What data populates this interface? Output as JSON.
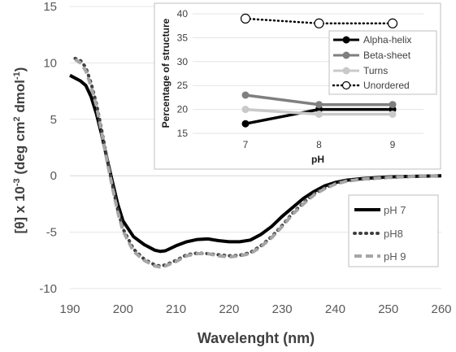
{
  "chart_data": [
    {
      "type": "line",
      "xlabel": "Wavelenght (nm)",
      "ylabel_parts": [
        "[θ] x 10",
        "-3",
        " (deg cm",
        "2",
        " dmol",
        "-1",
        ")"
      ],
      "xlim": [
        190,
        260
      ],
      "ylim": [
        -10,
        15
      ],
      "x_ticks": [
        "190",
        "200",
        "210",
        "220",
        "230",
        "240",
        "250",
        "260"
      ],
      "y_ticks": [
        "15",
        "10",
        "5",
        "0",
        "-5",
        "-10"
      ],
      "legend": {
        "placement": "lower-right",
        "entries": [
          "pH 7",
          "pH8",
          "pH 9"
        ]
      },
      "series": [
        {
          "name": "pH 7",
          "color": "#000000",
          "style": "solid",
          "points": [
            [
              190,
              8.9
            ],
            [
              192,
              8.4
            ],
            [
              193,
              8.0
            ],
            [
              194,
              7.0
            ],
            [
              195,
              5.5
            ],
            [
              196,
              3.6
            ],
            [
              197,
              1.5
            ],
            [
              198,
              -0.5
            ],
            [
              199,
              -2.5
            ],
            [
              200,
              -4.0
            ],
            [
              202,
              -5.4
            ],
            [
              204,
              -6.1
            ],
            [
              206,
              -6.6
            ],
            [
              207,
              -6.7
            ],
            [
              208,
              -6.65
            ],
            [
              210,
              -6.2
            ],
            [
              212,
              -5.85
            ],
            [
              214,
              -5.65
            ],
            [
              216,
              -5.6
            ],
            [
              218,
              -5.75
            ],
            [
              220,
              -5.85
            ],
            [
              222,
              -5.85
            ],
            [
              224,
              -5.7
            ],
            [
              226,
              -5.2
            ],
            [
              228,
              -4.5
            ],
            [
              230,
              -3.6
            ],
            [
              232,
              -2.8
            ],
            [
              234,
              -2.0
            ],
            [
              236,
              -1.4
            ],
            [
              238,
              -0.9
            ],
            [
              240,
              -0.6
            ],
            [
              242,
              -0.4
            ],
            [
              245,
              -0.25
            ],
            [
              250,
              -0.1
            ],
            [
              255,
              -0.05
            ],
            [
              260,
              0.0
            ]
          ]
        },
        {
          "name": "pH8",
          "color": "#404040",
          "style": "dotted",
          "points": [
            [
              191,
              10.4
            ],
            [
              192,
              10.2
            ],
            [
              193,
              9.6
            ],
            [
              194,
              8.2
            ],
            [
              195,
              6.4
            ],
            [
              196,
              4.0
            ],
            [
              197,
              1.5
            ],
            [
              198,
              -0.8
            ],
            [
              199,
              -3.0
            ],
            [
              200,
              -4.7
            ],
            [
              202,
              -6.5
            ],
            [
              204,
              -7.4
            ],
            [
              206,
              -7.9
            ],
            [
              207,
              -8.0
            ],
            [
              208,
              -7.9
            ],
            [
              210,
              -7.5
            ],
            [
              212,
              -7.0
            ],
            [
              214,
              -6.85
            ],
            [
              216,
              -6.9
            ],
            [
              218,
              -7.0
            ],
            [
              220,
              -7.1
            ],
            [
              222,
              -7.05
            ],
            [
              224,
              -6.8
            ],
            [
              226,
              -6.2
            ],
            [
              228,
              -5.4
            ],
            [
              230,
              -4.4
            ],
            [
              232,
              -3.3
            ],
            [
              234,
              -2.4
            ],
            [
              236,
              -1.6
            ],
            [
              238,
              -1.1
            ],
            [
              240,
              -0.7
            ],
            [
              242,
              -0.45
            ],
            [
              245,
              -0.3
            ],
            [
              250,
              -0.15
            ],
            [
              255,
              -0.05
            ],
            [
              260,
              0.0
            ]
          ]
        },
        {
          "name": "pH 9",
          "color": "#a6a6a6",
          "style": "dashed",
          "points": [
            [
              191,
              10.3
            ],
            [
              192,
              10.0
            ],
            [
              193,
              9.3
            ],
            [
              194,
              7.9
            ],
            [
              195,
              6.2
            ],
            [
              196,
              3.8
            ],
            [
              197,
              1.3
            ],
            [
              198,
              -1.0
            ],
            [
              199,
              -3.2
            ],
            [
              200,
              -4.9
            ],
            [
              202,
              -6.7
            ],
            [
              204,
              -7.5
            ],
            [
              206,
              -8.0
            ],
            [
              207,
              -8.1
            ],
            [
              208,
              -8.0
            ],
            [
              210,
              -7.6
            ],
            [
              212,
              -7.1
            ],
            [
              214,
              -6.9
            ],
            [
              216,
              -6.9
            ],
            [
              218,
              -7.1
            ],
            [
              220,
              -7.2
            ],
            [
              222,
              -7.1
            ],
            [
              224,
              -6.9
            ],
            [
              226,
              -6.3
            ],
            [
              228,
              -5.5
            ],
            [
              230,
              -4.5
            ],
            [
              232,
              -3.4
            ],
            [
              234,
              -2.5
            ],
            [
              236,
              -1.7
            ],
            [
              238,
              -1.15
            ],
            [
              240,
              -0.75
            ],
            [
              242,
              -0.5
            ],
            [
              245,
              -0.3
            ],
            [
              250,
              -0.15
            ],
            [
              255,
              -0.05
            ],
            [
              260,
              0.0
            ]
          ]
        }
      ]
    },
    {
      "type": "line",
      "xlabel": "pH",
      "ylabel": "Percentage of structure",
      "categories": [
        "7",
        "8",
        "9"
      ],
      "ylim": [
        15,
        40
      ],
      "y_ticks": [
        "15",
        "20",
        "25",
        "30",
        "35",
        "40"
      ],
      "legend": {
        "placement": "right",
        "entries": [
          "Alpha-helix",
          "Beta-sheet",
          "Turns",
          "Unordered"
        ]
      },
      "series": [
        {
          "name": "Alpha-helix",
          "color": "#000000",
          "style": "solid",
          "marker": "filled",
          "values": [
            17,
            20,
            20
          ]
        },
        {
          "name": "Beta-sheet",
          "color": "#7f7f7f",
          "style": "solid",
          "marker": "filled",
          "values": [
            23,
            21,
            21
          ]
        },
        {
          "name": "Turns",
          "color": "#c9c9c9",
          "style": "solid",
          "marker": "filled",
          "values": [
            20,
            19,
            19
          ]
        },
        {
          "name": "Unordered",
          "color": "#000000",
          "style": "dotted",
          "marker": "open",
          "values": [
            39,
            38,
            38
          ]
        }
      ]
    }
  ]
}
